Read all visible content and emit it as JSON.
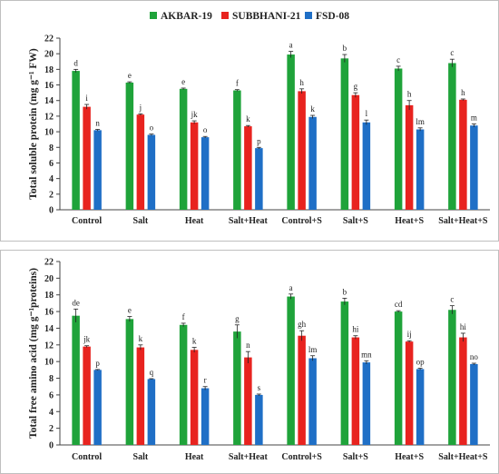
{
  "legend": {
    "position": "top-center",
    "entries": [
      {
        "name": "AKBAR-19",
        "color": "#1fa33a"
      },
      {
        "name": "SUBBHANI-21",
        "color": "#e8231f"
      },
      {
        "name": "FSD-08",
        "color": "#1f6fc6"
      }
    ]
  },
  "chart_data": [
    {
      "type": "bar",
      "title": "",
      "xlabel": "",
      "ylabel": "Total soluble protein (mg g⁻¹ FW)",
      "ylim": [
        0,
        22
      ],
      "yticks": [
        0,
        2,
        4,
        6,
        8,
        10,
        12,
        14,
        16,
        18,
        20,
        22
      ],
      "grid": false,
      "categories": [
        "Control",
        "Salt",
        "Heat",
        "Salt+Heat",
        "Control+S",
        "Salt+S",
        "Heat+S",
        "Salt+Heat+S"
      ],
      "series": [
        {
          "name": "AKBAR-19",
          "color": "#1fa33a",
          "values": [
            17.8,
            16.3,
            15.5,
            15.3,
            19.9,
            19.4,
            18.1,
            18.8
          ],
          "errors": [
            0.2,
            0.1,
            0.1,
            0.1,
            0.4,
            0.5,
            0.3,
            0.5
          ],
          "labels": [
            "d",
            "e",
            "e",
            "f",
            "a",
            "b",
            "c",
            "c"
          ]
        },
        {
          "name": "SUBBHANI-21",
          "color": "#e8231f",
          "values": [
            13.2,
            12.2,
            11.2,
            10.7,
            15.2,
            14.7,
            13.4,
            14.1
          ],
          "errors": [
            0.3,
            0.1,
            0.2,
            0.1,
            0.3,
            0.3,
            0.6,
            0.1
          ],
          "labels": [
            "i",
            "j",
            "jk",
            "k",
            "h",
            "g",
            "h",
            "h"
          ]
        },
        {
          "name": "FSD-08",
          "color": "#1f6fc6",
          "values": [
            10.2,
            9.6,
            9.3,
            7.9,
            11.9,
            11.2,
            10.3,
            10.8
          ],
          "errors": [
            0.1,
            0.1,
            0.1,
            0.1,
            0.2,
            0.3,
            0.2,
            0.2
          ],
          "labels": [
            "n",
            "o",
            "o",
            "p",
            "k",
            "l",
            "lm",
            "m"
          ]
        }
      ]
    },
    {
      "type": "bar",
      "title": "",
      "xlabel": "",
      "ylabel": "Total free amino acid (mg g⁻¹proteins)",
      "ylim": [
        0,
        22
      ],
      "yticks": [
        0,
        2,
        4,
        6,
        8,
        10,
        12,
        14,
        16,
        18,
        20,
        22
      ],
      "grid": false,
      "categories": [
        "Control",
        "Salt",
        "Heat",
        "Salt+Heat",
        "Control+S",
        "Salt+S",
        "Heat+S",
        "Salt+Heat+S"
      ],
      "series": [
        {
          "name": "AKBAR-19",
          "color": "#1fa33a",
          "values": [
            15.5,
            15.1,
            14.4,
            13.6,
            17.8,
            17.2,
            16.0,
            16.2
          ],
          "errors": [
            0.8,
            0.3,
            0.2,
            0.8,
            0.3,
            0.4,
            0.1,
            0.5
          ],
          "labels": [
            "de",
            "e",
            "f",
            "g",
            "a",
            "b",
            "cd",
            "c"
          ]
        },
        {
          "name": "SUBBHANI-21",
          "color": "#e8231f",
          "values": [
            11.8,
            11.7,
            11.4,
            10.5,
            13.1,
            12.9,
            12.4,
            12.9
          ],
          "errors": [
            0.1,
            0.3,
            0.3,
            0.7,
            0.6,
            0.2,
            0.1,
            0.5
          ],
          "labels": [
            "jk",
            "k",
            "k",
            "n",
            "gh",
            "hi",
            "ij",
            "hi"
          ]
        },
        {
          "name": "FSD-08",
          "color": "#1f6fc6",
          "values": [
            9.0,
            7.9,
            6.8,
            6.0,
            10.4,
            9.9,
            9.1,
            9.7
          ],
          "errors": [
            0.05,
            0.05,
            0.2,
            0.1,
            0.3,
            0.2,
            0.1,
            0.1
          ],
          "labels": [
            "p",
            "q",
            "r",
            "s",
            "lm",
            "mn",
            "op",
            "no"
          ]
        }
      ]
    }
  ]
}
